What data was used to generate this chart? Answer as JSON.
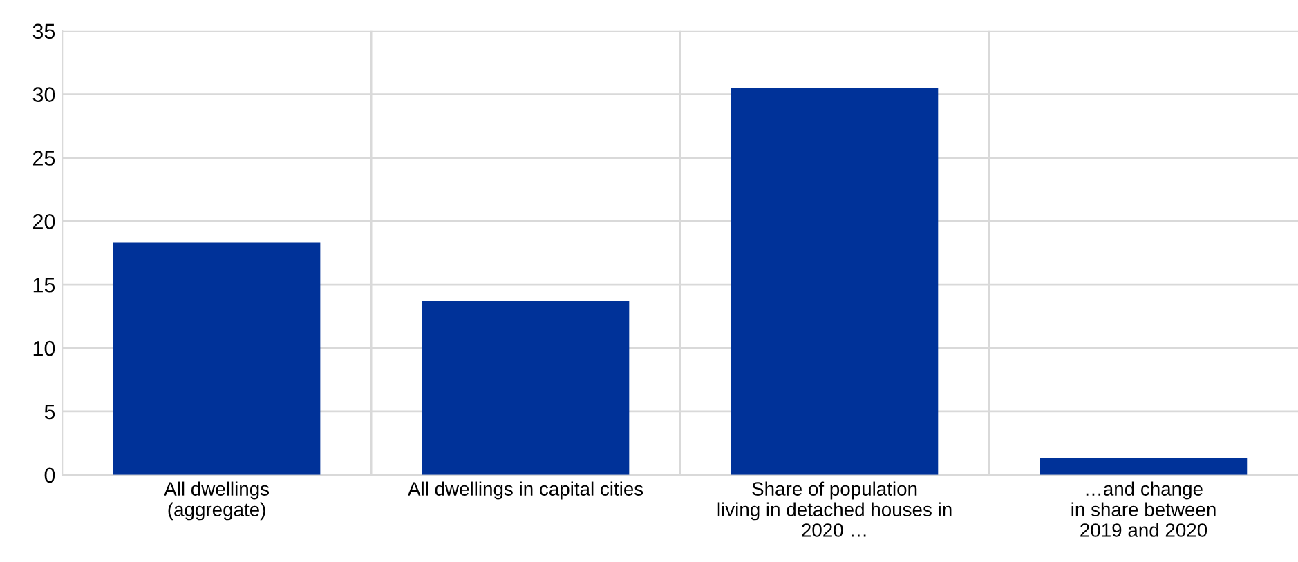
{
  "chart_data": {
    "type": "bar",
    "categories": [
      "All dwellings\n(aggregate)",
      "All dwellings in capital cities",
      "Share of population\nliving in detached houses in\n2020 …",
      "…and change\nin share between\n2019 and 2020"
    ],
    "values": [
      18.3,
      13.7,
      30.5,
      1.3
    ],
    "color": "#003299",
    "ylim": [
      0,
      35
    ],
    "yticks": [
      0,
      5,
      10,
      15,
      20,
      25,
      30,
      35
    ],
    "grid": true
  }
}
